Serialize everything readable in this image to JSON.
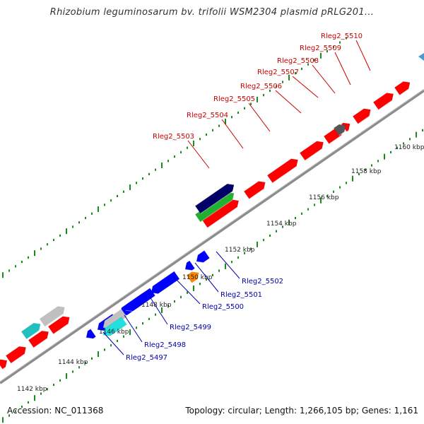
{
  "title": "Rhizobium leguminosarum bv. trifolii WSM2304 plasmid pRLG201...",
  "footer": {
    "accession": "Accession: NC_011368",
    "summary": "Topology: circular; Length: 1,266,105 bp; Genes: 1,161"
  },
  "colors": {
    "forward": "#ff0000",
    "reverse": "#0000ff",
    "upper_label": "#cc0000",
    "lower_label": "#0000aa",
    "tick": "#1a8c1a",
    "backbone": "#8c8c8c"
  },
  "scale_labels": [
    "1142 kbp",
    "1144 kbp",
    "1146 kbp",
    "1148 kbp",
    "1150 kbp",
    "1152 kbp",
    "1154 kbp",
    "1156 kbp",
    "1158 kbp",
    "1160 kbp"
  ],
  "upper_genes": [
    "Rleg2_5503",
    "Rleg2_5504",
    "Rleg2_5505",
    "Rleg2_5506",
    "Rleg2_5507",
    "Rleg2_5508",
    "Rleg2_5509",
    "Rleg2_5510"
  ],
  "lower_genes": [
    "Rleg2_5497",
    "Rleg2_5498",
    "Rleg2_5499",
    "Rleg2_5500",
    "Rleg2_5501",
    "Rleg2_5502"
  ]
}
